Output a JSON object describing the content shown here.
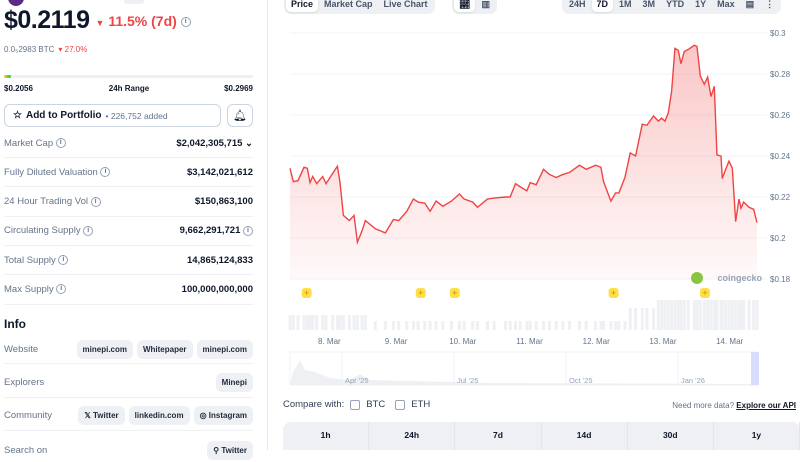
{
  "coin": {
    "price": "$0.2119",
    "change": "11.5% (7d)",
    "btc_price": "0.0₅2983 BTC",
    "btc_change": "27.0%"
  },
  "range": {
    "low": "$0.2056",
    "label": "24h Range",
    "high": "$0.2969",
    "position": 0.03
  },
  "portfolio": {
    "label": "Add to Portfolio",
    "added": "• 226,752 added"
  },
  "stats": [
    {
      "label": "Market Cap",
      "value": "$2,042,305,715"
    },
    {
      "label": "Fully Diluted Valuation",
      "value": "$3,142,021,612"
    },
    {
      "label": "24 Hour Trading Vol",
      "value": "$150,863,100"
    },
    {
      "label": "Circulating Supply",
      "value": "9,662,291,721"
    },
    {
      "label": "Total Supply",
      "value": "14,865,124,833"
    },
    {
      "label": "Max Supply",
      "value": "100,000,000,000"
    }
  ],
  "info": {
    "title": "Info",
    "website": {
      "label": "Website",
      "links": [
        "minepi.com",
        "Whitepaper",
        "minepi.com"
      ]
    },
    "explorers": {
      "label": "Explorers",
      "links": [
        "Minepi"
      ]
    },
    "community": {
      "label": "Community",
      "links": [
        "Twitter",
        "linkedin.com",
        "Instagram"
      ]
    },
    "search": {
      "label": "Search on",
      "links": [
        "Twitter"
      ]
    }
  },
  "chart_tabs": [
    "Price",
    "Market Cap",
    "Live Chart"
  ],
  "ranges": [
    "24H",
    "7D",
    "1M",
    "3M",
    "YTD",
    "1Y",
    "Max"
  ],
  "selected_range": "7D",
  "chart_data": {
    "type": "area",
    "color": "#ef4444",
    "watermark": "coingecko",
    "ylim": [
      0.18,
      0.3
    ],
    "yticks": [
      "$0.18",
      "$0.2",
      "$0.22",
      "$0.24",
      "$0.26",
      "$0.28",
      "$0.3"
    ],
    "xticks": [
      "8. Mar",
      "9. Mar",
      "10. Mar",
      "11. Mar",
      "12. Mar",
      "13. Mar",
      "14. Mar"
    ],
    "x_mar_day": [
      7.41,
      7.46,
      7.53,
      7.62,
      7.67,
      7.71,
      7.75,
      7.81,
      7.9,
      7.95,
      8.05,
      8.12,
      8.16,
      8.21,
      8.3,
      8.37,
      8.42,
      8.49,
      8.54,
      8.69,
      8.84,
      8.96,
      9.04,
      9.16,
      9.26,
      9.33,
      9.43,
      9.51,
      9.6,
      9.7,
      9.83,
      9.95,
      10.02,
      10.15,
      10.22,
      10.37,
      10.47,
      10.64,
      10.71,
      10.79,
      10.86,
      10.96,
      11.01,
      11.1,
      11.21,
      11.3,
      11.4,
      11.5,
      11.6,
      11.75,
      11.85,
      11.99,
      12.07,
      12.11,
      12.22,
      12.29,
      12.34,
      12.43,
      12.51,
      12.59,
      12.69,
      12.76,
      12.86,
      12.93,
      12.98,
      13.03,
      13.08,
      13.13,
      13.18,
      13.23,
      13.27,
      13.32,
      13.38,
      13.47,
      13.51,
      13.56,
      13.62,
      13.67,
      13.72,
      13.77,
      13.81,
      13.87,
      13.89,
      13.94,
      13.99,
      14.04,
      14.09,
      14.14,
      14.17,
      14.21,
      14.29,
      14.36,
      14.41
    ],
    "price": [
      0.234,
      0.2275,
      0.228,
      0.2345,
      0.234,
      0.227,
      0.23,
      0.2265,
      0.23,
      0.2265,
      0.2315,
      0.235,
      0.227,
      0.211,
      0.2085,
      0.211,
      0.198,
      0.2035,
      0.2085,
      0.2045,
      0.2025,
      0.209,
      0.2085,
      0.213,
      0.219,
      0.2175,
      0.217,
      0.213,
      0.218,
      0.2155,
      0.218,
      0.2215,
      0.219,
      0.2175,
      0.215,
      0.219,
      0.2195,
      0.22,
      0.22,
      0.2265,
      0.225,
      0.223,
      0.227,
      0.226,
      0.2335,
      0.231,
      0.2295,
      0.231,
      0.232,
      0.2355,
      0.2335,
      0.2355,
      0.2345,
      0.2275,
      0.218,
      0.222,
      0.222,
      0.2295,
      0.2415,
      0.24,
      0.2555,
      0.255,
      0.2595,
      0.257,
      0.2585,
      0.257,
      0.261,
      0.2715,
      0.2925,
      0.2915,
      0.285,
      0.291,
      0.292,
      0.294,
      0.2935,
      0.279,
      0.275,
      0.2785,
      0.269,
      0.274,
      0.2405,
      0.24,
      0.229,
      0.2335,
      0.2375,
      0.234,
      0.208,
      0.219,
      0.2145,
      0.2175,
      0.215,
      0.214,
      0.2075
    ],
    "event_markers_mar_day": [
      7.66,
      9.37,
      9.88,
      12.26,
      13.63
    ],
    "navigator_labels": [
      "Apr '25",
      "Jul '25",
      "Oct '25",
      "Jan '26"
    ]
  },
  "compare": {
    "label": "Compare with:",
    "options": [
      "BTC",
      "ETH"
    ]
  },
  "api": {
    "text": "Need more data?",
    "link": "Explore our API"
  },
  "perf_headers": [
    "1h",
    "24h",
    "7d",
    "14d",
    "30d",
    "1y"
  ]
}
